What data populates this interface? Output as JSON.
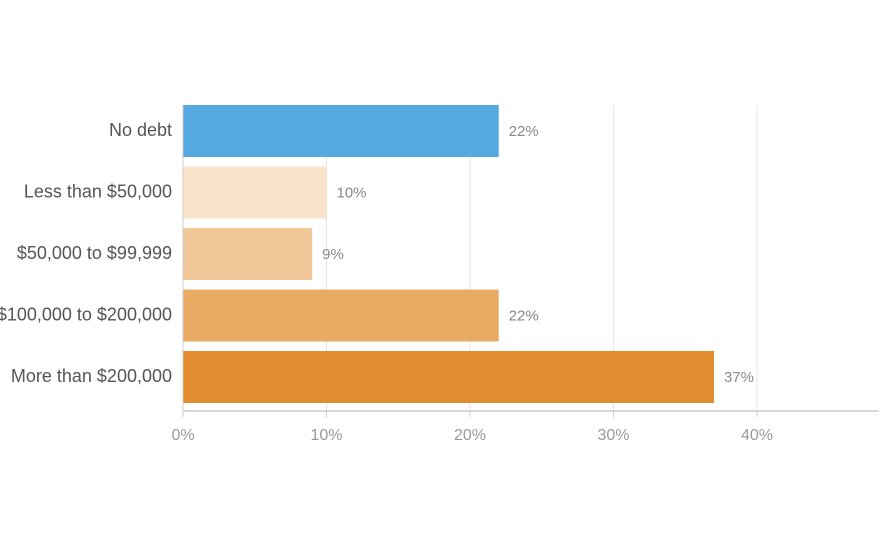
{
  "chart_data": {
    "type": "bar",
    "orientation": "horizontal",
    "categories": [
      "No debt",
      "Less than $50,000",
      "$50,000 to $99,999",
      "$100,000 to $200,000",
      "More than $200,000"
    ],
    "values": [
      22,
      10,
      9,
      22,
      37
    ],
    "value_labels": [
      "22%",
      "10%",
      "9%",
      "22%",
      "37%"
    ],
    "colors": [
      "#53a9e0",
      "#f9e3cb",
      "#f0c797",
      "#e9ab63",
      "#e18d2f"
    ],
    "xlim": [
      0,
      48.5
    ],
    "xticks": [
      {
        "value": 0,
        "label": "0%"
      },
      {
        "value": 10,
        "label": "10%"
      },
      {
        "value": 20,
        "label": "20%"
      },
      {
        "value": 30,
        "label": "30%"
      },
      {
        "value": 40,
        "label": "40%"
      }
    ],
    "grid": true
  }
}
